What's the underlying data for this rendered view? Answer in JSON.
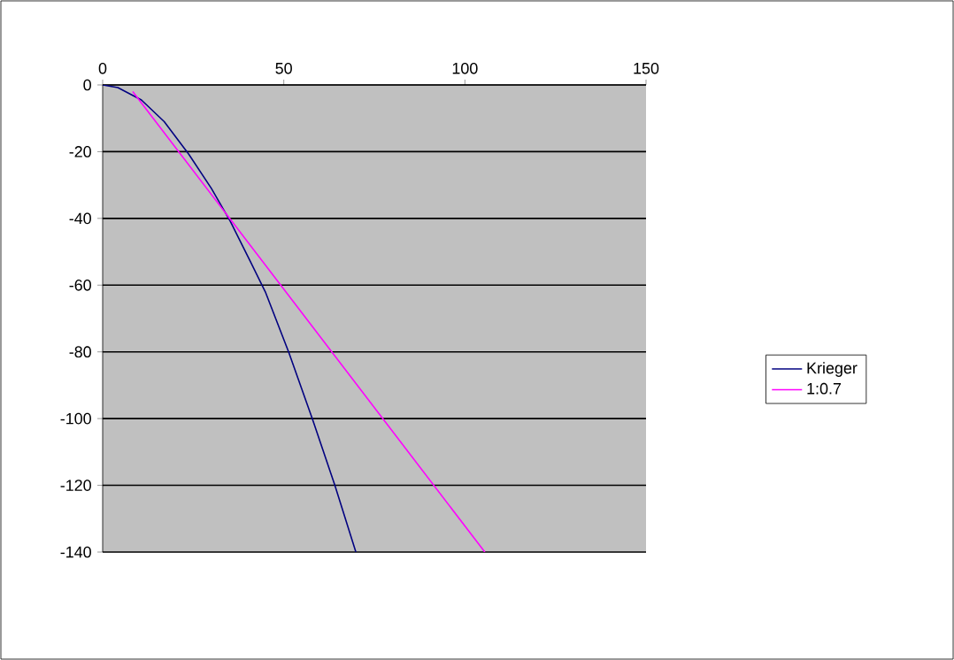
{
  "chart_data": {
    "type": "line",
    "xlim": [
      0,
      150
    ],
    "ylim": [
      -140,
      0
    ],
    "xticks": [
      0,
      50,
      100,
      150
    ],
    "yticks": [
      -140,
      -120,
      -100,
      -80,
      -60,
      -40,
      -20,
      0
    ],
    "grid": "y",
    "legend": "right",
    "series": [
      {
        "name": "Krieger",
        "color": "#000080",
        "x": [
          0,
          4.2,
          10.7,
          17,
          23.8,
          30,
          35.2,
          40.9,
          44.9,
          51.4,
          58,
          64.1,
          69.9
        ],
        "values": [
          0,
          -0.8,
          -4.5,
          -11,
          -20.8,
          -31,
          -40.8,
          -53.2,
          -62,
          -80.2,
          -100.4,
          -120,
          -140
        ]
      },
      {
        "name": "1:0.7",
        "color": "#ff00ff",
        "x": [
          8.3,
          105.5
        ],
        "values": [
          -2,
          -140
        ]
      }
    ]
  }
}
